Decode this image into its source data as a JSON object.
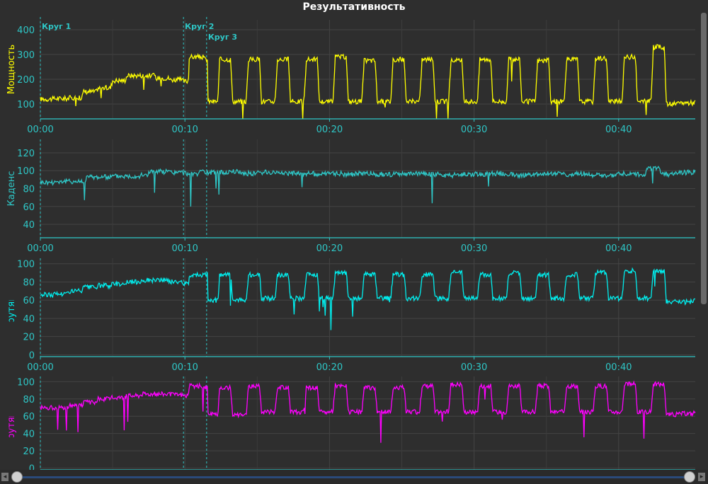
{
  "title": "Результативность",
  "colors": {
    "background": "#2e2e2e",
    "grid": "#444444",
    "axis": "#2ec7c7",
    "tick_text": "#2ec7c7",
    "lap_line": "#2ec7c7"
  },
  "laps": [
    {
      "label": "Круг 1",
      "x": 0
    },
    {
      "label": "Круг 2",
      "x": 9.9
    },
    {
      "label": "Круг 3",
      "x": 11.5
    }
  ],
  "x_ticks": [
    "00:00",
    "00:10",
    "00:20",
    "00:30",
    "00:40"
  ],
  "chart_data": [
    {
      "type": "line",
      "ylabel": "Мощность",
      "color": "#ffff00",
      "ylim": [
        40,
        440
      ],
      "yticks": [
        100,
        200,
        300,
        400
      ],
      "xlim": [
        0,
        45.3
      ],
      "x": [
        0,
        1,
        2,
        3,
        4,
        5,
        6,
        7,
        8,
        9,
        9.9,
        10.3,
        11.4,
        11.6,
        12.4,
        13.3,
        14.4,
        15.3,
        16.4,
        17.3,
        18.4,
        19.3,
        20.4,
        21.3,
        22.4,
        23.3,
        24.4,
        25.3,
        26.4,
        27.3,
        28.4,
        29.3,
        30.4,
        31.3,
        32.4,
        33.3,
        34.4,
        35.3,
        36.4,
        37.3,
        38.4,
        39.3,
        40.4,
        41.3,
        42.4,
        43.3,
        44.3,
        45.3
      ],
      "y": [
        120,
        122,
        125,
        150,
        165,
        195,
        215,
        215,
        205,
        198,
        192,
        290,
        280,
        110,
        280,
        110,
        280,
        110,
        280,
        110,
        280,
        110,
        290,
        110,
        275,
        110,
        280,
        110,
        280,
        110,
        275,
        110,
        280,
        110,
        280,
        110,
        275,
        110,
        280,
        110,
        285,
        110,
        290,
        110,
        330,
        100,
        105,
        110
      ]
    },
    {
      "type": "line",
      "ylabel": "Каденс",
      "color": "#2ec7c7",
      "ylim": [
        25,
        135
      ],
      "yticks": [
        40,
        60,
        80,
        100,
        120
      ],
      "xlim": [
        0,
        45.3
      ],
      "x": [
        0,
        1,
        2,
        3,
        3.2,
        4,
        5,
        6,
        7,
        7.5,
        8,
        9,
        10,
        11,
        12,
        13,
        14,
        15,
        16,
        17,
        18,
        19,
        20,
        21,
        22,
        23,
        24,
        25,
        26,
        27,
        28,
        29,
        30,
        31,
        32,
        33,
        34,
        35,
        36,
        37,
        38,
        39,
        40,
        41,
        42,
        43,
        44,
        45.3
      ],
      "y": [
        87,
        88,
        88,
        89,
        93,
        93,
        94,
        94,
        95,
        99,
        99,
        98,
        97,
        98,
        98,
        99,
        97,
        98,
        98,
        97,
        97,
        96,
        97,
        96,
        97,
        96,
        96,
        96,
        97,
        96,
        95,
        96,
        96,
        97,
        96,
        95,
        96,
        97,
        96,
        97,
        95,
        94,
        97,
        96,
        102,
        96,
        98,
        101
      ]
    },
    {
      "type": "line",
      "ylabel": "Плавность крутящего момента",
      "color": "#00eeee",
      "ylim": [
        -2,
        106
      ],
      "yticks": [
        0,
        20,
        40,
        60,
        80,
        100
      ],
      "xlim": [
        0,
        45.3
      ],
      "x": [
        0,
        1,
        2,
        3,
        4,
        5,
        6,
        7,
        8,
        9,
        9.9,
        10.3,
        11.4,
        11.6,
        12.4,
        13.3,
        14.4,
        15.3,
        16.4,
        17.3,
        18.4,
        19.3,
        20.4,
        21.3,
        22.4,
        23.3,
        24.4,
        25.3,
        26.4,
        27.3,
        28.4,
        29.3,
        30.4,
        31.3,
        32.4,
        33.3,
        34.4,
        35.3,
        36.4,
        37.3,
        38.4,
        39.3,
        40.4,
        41.3,
        42.4,
        43.3,
        44.3,
        45.3
      ],
      "y": [
        66,
        67,
        70,
        74,
        76,
        78,
        80,
        82,
        82,
        80,
        78,
        88,
        88,
        60,
        88,
        60,
        88,
        62,
        88,
        62,
        88,
        62,
        90,
        62,
        88,
        62,
        88,
        62,
        88,
        62,
        90,
        62,
        88,
        62,
        90,
        62,
        88,
        62,
        88,
        62,
        90,
        62,
        92,
        62,
        92,
        58,
        58,
        62
      ]
    },
    {
      "type": "line",
      "ylabel": "Плавность крутящего момента",
      "color": "#ff00ff",
      "ylim": [
        -2,
        106
      ],
      "yticks": [
        0,
        20,
        40,
        60,
        80,
        100
      ],
      "xlim": [
        0,
        45.3
      ],
      "x": [
        0,
        1,
        2,
        3,
        4,
        5,
        6,
        7,
        8,
        9,
        9.9,
        10.3,
        11.4,
        11.6,
        12.4,
        13.3,
        14.4,
        15.3,
        16.4,
        17.3,
        18.4,
        19.3,
        20.4,
        21.3,
        22.4,
        23.3,
        24.4,
        25.3,
        26.4,
        27.3,
        28.4,
        29.3,
        30.4,
        31.3,
        32.4,
        33.3,
        34.4,
        35.3,
        36.4,
        37.3,
        38.4,
        39.3,
        40.4,
        41.3,
        42.4,
        43.3,
        44.3,
        45.3
      ],
      "y": [
        70,
        70,
        72,
        76,
        80,
        82,
        84,
        86,
        86,
        85,
        84,
        95,
        93,
        62,
        93,
        62,
        95,
        65,
        93,
        65,
        93,
        65,
        95,
        65,
        93,
        65,
        93,
        65,
        95,
        65,
        97,
        65,
        95,
        65,
        95,
        65,
        95,
        65,
        95,
        65,
        95,
        65,
        97,
        65,
        97,
        62,
        63,
        66
      ]
    }
  ]
}
